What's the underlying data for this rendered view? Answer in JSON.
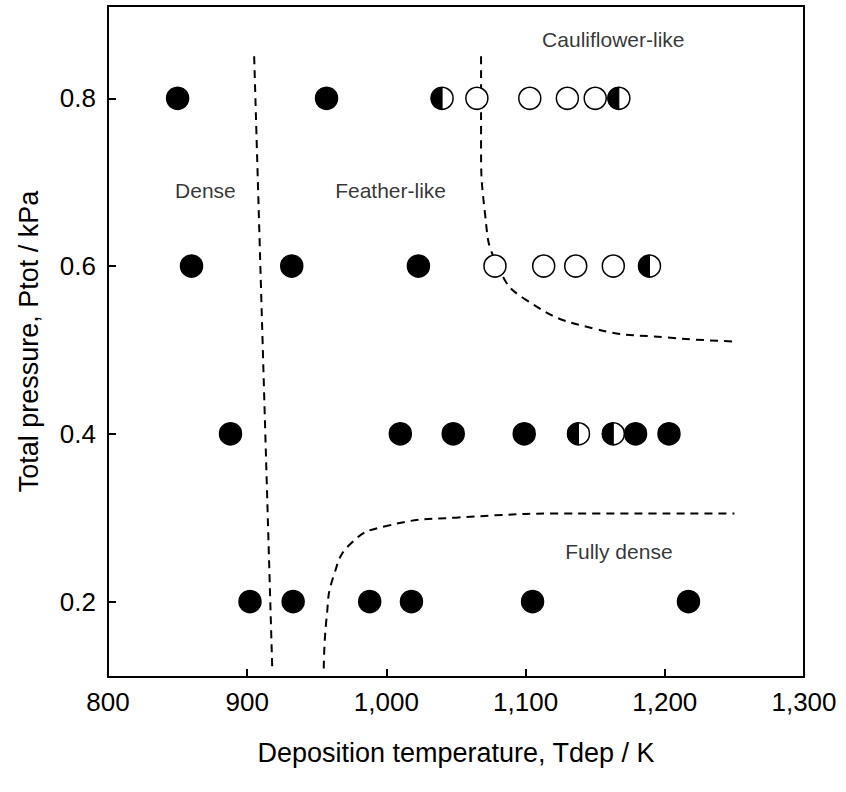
{
  "chart_data": {
    "type": "scatter",
    "xlabel": "Deposition temperature, Tdep / K",
    "ylabel": "Total pressure, Ptot / kPa",
    "xlim": [
      800,
      1300
    ],
    "xticks": [
      800,
      900,
      1000,
      1100,
      1200,
      1300
    ],
    "ylim": [
      0.11,
      0.91
    ],
    "yticks": [
      0.2,
      0.4,
      0.6,
      0.8
    ],
    "grid": false,
    "series": [
      {
        "type": "scatter",
        "marker": "filled",
        "color": "#000000",
        "x": [
          850,
          957,
          860,
          932,
          1023,
          888,
          1010,
          1048,
          1099,
          1179,
          1203,
          902,
          933,
          988,
          1018,
          1105,
          1217
        ],
        "values": [
          0.8,
          0.8,
          0.6,
          0.6,
          0.6,
          0.4,
          0.4,
          0.4,
          0.4,
          0.4,
          0.4,
          0.2,
          0.2,
          0.2,
          0.2,
          0.2,
          0.2
        ]
      },
      {
        "type": "scatter",
        "marker": "open",
        "color": "#000000",
        "x": [
          1065,
          1103,
          1130,
          1150,
          1078,
          1113,
          1136,
          1163
        ],
        "values": [
          0.8,
          0.8,
          0.8,
          0.8,
          0.6,
          0.6,
          0.6,
          0.6
        ]
      },
      {
        "type": "scatter",
        "marker": "half",
        "color": "#000000",
        "x": [
          1040,
          1167,
          1189,
          1138,
          1163
        ],
        "values": [
          0.8,
          0.8,
          0.6,
          0.4,
          0.4
        ]
      },
      {
        "type": "line",
        "line_style": "dashed",
        "color": "#000000",
        "x": [
          905,
          918
        ],
        "values": [
          0.85,
          0.12
        ]
      },
      {
        "type": "line",
        "line_style": "dashed",
        "color": "#000000",
        "x": [
          955,
          957,
          962,
          975,
          1000,
          1050,
          1150,
          1250
        ],
        "values": [
          0.12,
          0.18,
          0.23,
          0.27,
          0.29,
          0.3,
          0.305,
          0.305
        ]
      },
      {
        "type": "line",
        "line_style": "dashed",
        "color": "#000000",
        "x": [
          1068,
          1068,
          1071,
          1080,
          1100,
          1150,
          1200,
          1250
        ],
        "values": [
          0.85,
          0.75,
          0.66,
          0.6,
          0.56,
          0.525,
          0.515,
          0.51
        ]
      }
    ],
    "annotations": [
      {
        "text": "Dense",
        "x": 870,
        "y": 0.69
      },
      {
        "text": "Feather-like",
        "x": 1003,
        "y": 0.69
      },
      {
        "text": "Cauliflower-like",
        "x": 1163,
        "y": 0.87
      },
      {
        "text": "Fully dense",
        "x": 1167,
        "y": 0.26
      }
    ]
  }
}
